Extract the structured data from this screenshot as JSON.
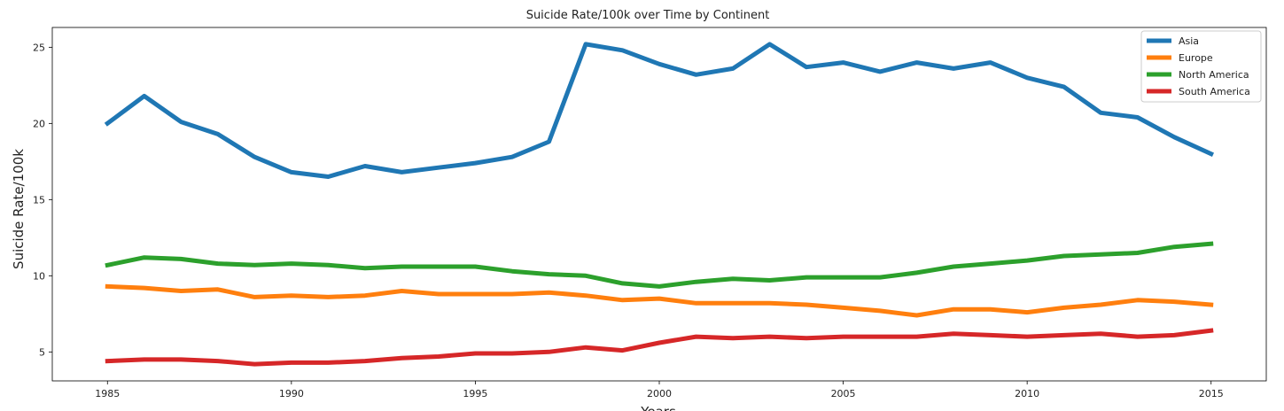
{
  "chart_data": {
    "type": "line",
    "title": "Suicide Rate/100k over Time by Continent",
    "xlabel": "Years",
    "ylabel": "Suicide Rate/100k",
    "xlim": [
      1983.5,
      2016.5
    ],
    "ylim": [
      3.1,
      26.3
    ],
    "xticks": [
      1985,
      1990,
      1995,
      2000,
      2005,
      2010,
      2015
    ],
    "yticks": [
      5,
      10,
      15,
      20,
      25
    ],
    "grid": false,
    "legend_position": "top-right",
    "x": [
      1985,
      1986,
      1987,
      1988,
      1989,
      1990,
      1991,
      1992,
      1993,
      1994,
      1995,
      1996,
      1997,
      1998,
      1999,
      2000,
      2001,
      2002,
      2003,
      2004,
      2005,
      2006,
      2007,
      2008,
      2009,
      2010,
      2011,
      2012,
      2013,
      2014,
      2015
    ],
    "series": [
      {
        "name": "Asia",
        "color": "#1f77b4",
        "values": [
          20.0,
          21.8,
          20.1,
          19.3,
          17.8,
          16.8,
          16.5,
          17.2,
          16.8,
          17.1,
          17.4,
          17.8,
          18.8,
          25.2,
          24.8,
          23.9,
          23.2,
          23.6,
          25.2,
          23.7,
          24.0,
          23.4,
          24.0,
          23.6,
          24.0,
          23.0,
          22.4,
          20.7,
          20.4,
          19.1,
          18.0
        ]
      },
      {
        "name": "Europe",
        "color": "#ff7f0e",
        "values": [
          9.3,
          9.2,
          9.0,
          9.1,
          8.6,
          8.7,
          8.6,
          8.7,
          9.0,
          8.8,
          8.8,
          8.8,
          8.9,
          8.7,
          8.4,
          8.5,
          8.2,
          8.2,
          8.2,
          8.1,
          7.9,
          7.7,
          7.4,
          7.8,
          7.8,
          7.6,
          7.9,
          8.1,
          8.4,
          8.3,
          8.1
        ]
      },
      {
        "name": "North America",
        "color": "#2ca02c",
        "values": [
          10.7,
          11.2,
          11.1,
          10.8,
          10.7,
          10.8,
          10.7,
          10.5,
          10.6,
          10.6,
          10.6,
          10.3,
          10.1,
          10.0,
          9.5,
          9.3,
          9.6,
          9.8,
          9.7,
          9.9,
          9.9,
          9.9,
          10.2,
          10.6,
          10.8,
          11.0,
          11.3,
          11.4,
          11.5,
          11.9,
          12.1
        ]
      },
      {
        "name": "South America",
        "color": "#d62728",
        "values": [
          4.4,
          4.5,
          4.5,
          4.4,
          4.2,
          4.3,
          4.3,
          4.4,
          4.6,
          4.7,
          4.9,
          4.9,
          5.0,
          5.3,
          5.1,
          5.6,
          6.0,
          5.9,
          6.0,
          5.9,
          6.0,
          6.0,
          6.0,
          6.2,
          6.1,
          6.0,
          6.1,
          6.2,
          6.0,
          6.1,
          6.4
        ]
      }
    ]
  }
}
